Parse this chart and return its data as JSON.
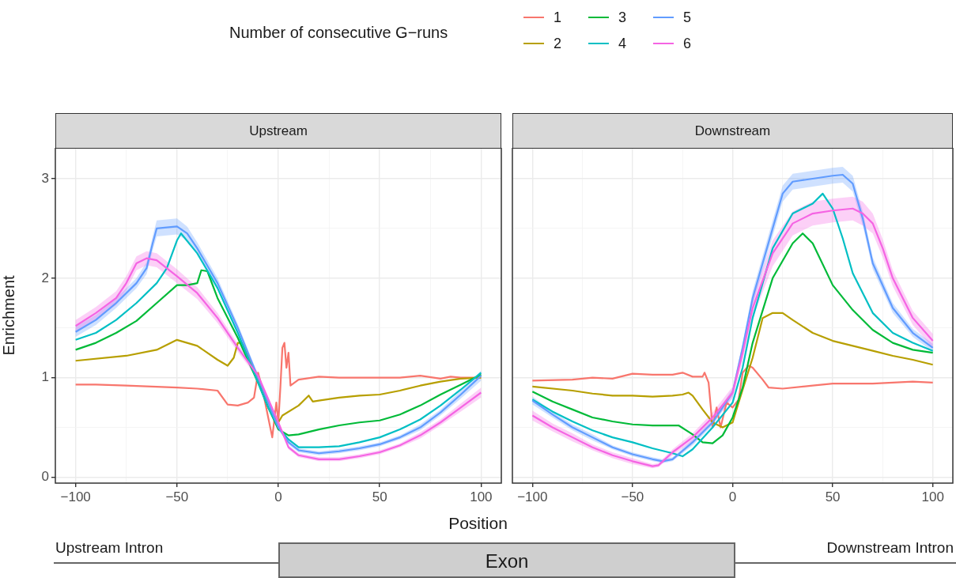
{
  "chart_data": [
    {
      "type": "line",
      "title": "Upstream",
      "xlabel": "Position",
      "ylabel": "Enrichment",
      "legend_title": "Number of consecutive G−runs",
      "legend": "top",
      "grid": true,
      "annotations": [
        "Upstream Intron",
        "Exon",
        "Downstream Intron"
      ],
      "xlim": [
        -110,
        110
      ],
      "ylim": [
        -0.06,
        3.31
      ],
      "xticks": [
        {
          "value": -100,
          "label": "−100"
        },
        {
          "value": -75,
          "label": null
        },
        {
          "value": -50,
          "label": "−50"
        },
        {
          "value": -25,
          "label": null
        },
        0,
        {
          "value": 25,
          "label": null
        },
        50,
        {
          "value": 75,
          "label": null
        },
        100
      ],
      "yticks": [
        0,
        {
          "value": 0.5,
          "label": null
        },
        1,
        {
          "value": 1.5,
          "label": null
        },
        2,
        {
          "value": 2.5,
          "label": null
        },
        3
      ],
      "series": [
        {
          "name": "1",
          "color": "#f8766d",
          "x": [
            -100,
            -90,
            -75,
            -50,
            -40,
            -30,
            -25,
            -20,
            -15,
            -12,
            -10,
            -8,
            -5,
            -3,
            -1,
            0,
            1,
            2,
            3,
            4,
            5,
            6,
            10,
            20,
            30,
            40,
            50,
            60,
            70,
            80,
            85,
            90,
            100
          ],
          "values": [
            0.93,
            0.93,
            0.92,
            0.9,
            0.89,
            0.87,
            0.73,
            0.72,
            0.75,
            0.8,
            1.05,
            0.9,
            0.6,
            0.4,
            0.75,
            0.55,
            0.9,
            1.3,
            1.35,
            1.1,
            1.25,
            0.92,
            0.98,
            1.01,
            1.0,
            1.0,
            1.0,
            1.0,
            1.02,
            0.99,
            1.01,
            1.0,
            1.0
          ]
        },
        {
          "name": "2",
          "color": "#b79f00",
          "x": [
            -100,
            -75,
            -60,
            -50,
            -40,
            -30,
            -25,
            -22,
            -20,
            -18,
            -10,
            -5,
            0,
            2,
            10,
            15,
            17,
            20,
            30,
            40,
            50,
            60,
            70,
            80,
            90,
            100
          ],
          "values": [
            1.17,
            1.22,
            1.28,
            1.38,
            1.32,
            1.18,
            1.12,
            1.2,
            1.35,
            1.35,
            1.0,
            0.7,
            0.55,
            0.62,
            0.72,
            0.82,
            0.76,
            0.77,
            0.8,
            0.82,
            0.83,
            0.87,
            0.92,
            0.96,
            0.99,
            1.0
          ]
        },
        {
          "name": "3",
          "color": "#00ba38",
          "x": [
            -100,
            -90,
            -80,
            -70,
            -60,
            -50,
            -45,
            -40,
            -38,
            -35,
            -30,
            -20,
            -10,
            -5,
            0,
            5,
            10,
            20,
            30,
            40,
            50,
            60,
            70,
            80,
            90,
            100
          ],
          "values": [
            1.28,
            1.35,
            1.45,
            1.57,
            1.75,
            1.93,
            1.93,
            1.95,
            2.08,
            2.07,
            1.8,
            1.4,
            0.95,
            0.7,
            0.48,
            0.42,
            0.43,
            0.48,
            0.52,
            0.55,
            0.57,
            0.63,
            0.72,
            0.83,
            0.93,
            1.03
          ]
        },
        {
          "name": "4",
          "color": "#00bfc4",
          "x": [
            -100,
            -90,
            -80,
            -70,
            -60,
            -55,
            -50,
            -48,
            -40,
            -30,
            -20,
            -10,
            -5,
            0,
            5,
            10,
            20,
            30,
            40,
            50,
            60,
            70,
            80,
            90,
            100
          ],
          "values": [
            1.38,
            1.45,
            1.58,
            1.75,
            1.95,
            2.1,
            2.38,
            2.45,
            2.25,
            1.9,
            1.45,
            0.95,
            0.7,
            0.5,
            0.38,
            0.3,
            0.3,
            0.31,
            0.35,
            0.4,
            0.48,
            0.58,
            0.72,
            0.88,
            1.05
          ]
        },
        {
          "name": "5",
          "color": "#619cff",
          "x": [
            -100,
            -90,
            -80,
            -70,
            -65,
            -62,
            -60,
            -50,
            -45,
            -40,
            -30,
            -20,
            -10,
            -5,
            0,
            5,
            10,
            20,
            30,
            40,
            50,
            60,
            70,
            80,
            90,
            100
          ],
          "values": [
            1.46,
            1.58,
            1.75,
            1.95,
            2.1,
            2.35,
            2.5,
            2.52,
            2.45,
            2.3,
            1.95,
            1.5,
            1.0,
            0.75,
            0.5,
            0.35,
            0.27,
            0.24,
            0.26,
            0.29,
            0.33,
            0.4,
            0.5,
            0.65,
            0.83,
            1.02
          ],
          "lower": [
            1.41,
            1.53,
            1.7,
            1.9,
            2.04,
            2.28,
            2.42,
            2.44,
            2.38,
            2.24,
            1.9,
            1.46,
            0.97,
            0.72,
            0.48,
            0.33,
            0.25,
            0.22,
            0.24,
            0.27,
            0.31,
            0.38,
            0.47,
            0.62,
            0.79,
            0.97
          ],
          "upper": [
            1.51,
            1.63,
            1.8,
            2.0,
            2.16,
            2.42,
            2.58,
            2.6,
            2.52,
            2.36,
            2.0,
            1.54,
            1.03,
            0.78,
            0.52,
            0.37,
            0.29,
            0.26,
            0.28,
            0.31,
            0.35,
            0.42,
            0.53,
            0.68,
            0.87,
            1.07
          ]
        },
        {
          "name": "6",
          "color": "#f564e3",
          "x": [
            -100,
            -90,
            -80,
            -75,
            -70,
            -65,
            -60,
            -50,
            -40,
            -30,
            -20,
            -10,
            0,
            5,
            10,
            20,
            30,
            40,
            50,
            60,
            70,
            80,
            90,
            100
          ],
          "values": [
            1.52,
            1.65,
            1.8,
            1.95,
            2.15,
            2.2,
            2.18,
            2.02,
            1.85,
            1.6,
            1.3,
            1.02,
            0.55,
            0.3,
            0.22,
            0.18,
            0.18,
            0.21,
            0.25,
            0.32,
            0.42,
            0.55,
            0.7,
            0.85
          ],
          "lower": [
            1.46,
            1.59,
            1.73,
            1.88,
            2.08,
            2.13,
            2.11,
            1.95,
            1.79,
            1.55,
            1.26,
            0.99,
            0.53,
            0.28,
            0.2,
            0.16,
            0.16,
            0.19,
            0.23,
            0.3,
            0.39,
            0.52,
            0.66,
            0.8
          ],
          "upper": [
            1.58,
            1.71,
            1.87,
            2.02,
            2.22,
            2.27,
            2.25,
            2.09,
            1.91,
            1.65,
            1.34,
            1.05,
            0.57,
            0.32,
            0.24,
            0.2,
            0.2,
            0.23,
            0.27,
            0.34,
            0.45,
            0.58,
            0.74,
            0.9
          ]
        }
      ]
    },
    {
      "type": "line",
      "title": "Downstream",
      "grid": true,
      "tick_labels": "x",
      "xlim": [
        -110,
        110
      ],
      "ylim": [
        -0.06,
        3.31
      ],
      "xticks": [
        {
          "value": -100,
          "label": "−100"
        },
        {
          "value": -75,
          "label": null
        },
        {
          "value": -50,
          "label": "−50"
        },
        {
          "value": -25,
          "label": null
        },
        0,
        {
          "value": 25,
          "label": null
        },
        50,
        {
          "value": 75,
          "label": null
        },
        100
      ],
      "yticks": [
        0,
        {
          "value": 0.5,
          "label": null
        },
        1,
        {
          "value": 1.5,
          "label": null
        },
        2,
        {
          "value": 2.5,
          "label": null
        },
        3
      ],
      "series": [
        {
          "name": "1",
          "color": "#f8766d",
          "x": [
            -100,
            -80,
            -70,
            -60,
            -50,
            -40,
            -30,
            -25,
            -20,
            -15,
            -14,
            -12,
            -10,
            -8,
            -6,
            -3,
            0,
            3,
            5,
            8,
            10,
            15,
            18,
            25,
            40,
            50,
            60,
            70,
            80,
            90,
            100
          ],
          "values": [
            0.97,
            0.98,
            1.0,
            0.99,
            1.04,
            1.03,
            1.03,
            1.05,
            1.01,
            1.01,
            1.05,
            0.95,
            0.5,
            0.7,
            0.5,
            0.75,
            0.7,
            0.78,
            1.05,
            1.12,
            1.1,
            0.98,
            0.9,
            0.89,
            0.92,
            0.94,
            0.94,
            0.94,
            0.95,
            0.96,
            0.95
          ]
        },
        {
          "name": "2",
          "color": "#b79f00",
          "x": [
            -100,
            -80,
            -70,
            -60,
            -50,
            -40,
            -30,
            -25,
            -22,
            -20,
            -15,
            -10,
            -5,
            0,
            3,
            10,
            15,
            20,
            25,
            30,
            40,
            50,
            60,
            70,
            80,
            90,
            100
          ],
          "values": [
            0.91,
            0.87,
            0.84,
            0.82,
            0.82,
            0.81,
            0.82,
            0.83,
            0.85,
            0.82,
            0.68,
            0.55,
            0.5,
            0.55,
            0.75,
            1.2,
            1.6,
            1.65,
            1.65,
            1.58,
            1.45,
            1.37,
            1.32,
            1.27,
            1.22,
            1.18,
            1.13
          ]
        },
        {
          "name": "3",
          "color": "#00ba38",
          "x": [
            -100,
            -90,
            -80,
            -70,
            -60,
            -50,
            -40,
            -30,
            -27,
            -20,
            -15,
            -10,
            -5,
            0,
            5,
            10,
            20,
            30,
            35,
            40,
            50,
            60,
            70,
            80,
            90,
            100
          ],
          "values": [
            0.86,
            0.76,
            0.68,
            0.6,
            0.56,
            0.53,
            0.52,
            0.52,
            0.52,
            0.43,
            0.35,
            0.34,
            0.42,
            0.6,
            0.9,
            1.35,
            2.0,
            2.35,
            2.45,
            2.35,
            1.93,
            1.68,
            1.48,
            1.35,
            1.28,
            1.25
          ]
        },
        {
          "name": "4",
          "color": "#00bfc4",
          "x": [
            -100,
            -90,
            -80,
            -70,
            -60,
            -50,
            -40,
            -30,
            -25,
            -20,
            -10,
            0,
            5,
            10,
            20,
            30,
            40,
            45,
            50,
            55,
            60,
            70,
            80,
            90,
            100
          ],
          "values": [
            0.78,
            0.66,
            0.56,
            0.47,
            0.4,
            0.35,
            0.29,
            0.24,
            0.21,
            0.28,
            0.5,
            0.75,
            1.1,
            1.6,
            2.3,
            2.65,
            2.75,
            2.85,
            2.7,
            2.4,
            2.05,
            1.65,
            1.45,
            1.35,
            1.27
          ]
        },
        {
          "name": "5",
          "color": "#619cff",
          "x": [
            -100,
            -90,
            -80,
            -70,
            -60,
            -50,
            -40,
            -35,
            -30,
            -20,
            -10,
            0,
            5,
            10,
            20,
            25,
            30,
            40,
            50,
            55,
            60,
            65,
            70,
            80,
            90,
            100
          ],
          "values": [
            0.77,
            0.63,
            0.5,
            0.4,
            0.3,
            0.23,
            0.18,
            0.16,
            0.18,
            0.35,
            0.55,
            0.85,
            1.3,
            1.8,
            2.5,
            2.85,
            2.97,
            3.0,
            3.03,
            3.04,
            2.95,
            2.6,
            2.15,
            1.7,
            1.45,
            1.3
          ],
          "lower": [
            0.73,
            0.6,
            0.47,
            0.37,
            0.28,
            0.21,
            0.16,
            0.14,
            0.16,
            0.32,
            0.52,
            0.81,
            1.25,
            1.73,
            2.42,
            2.77,
            2.89,
            2.92,
            2.95,
            2.96,
            2.87,
            2.53,
            2.09,
            1.65,
            1.41,
            1.26
          ],
          "upper": [
            0.81,
            0.66,
            0.53,
            0.43,
            0.32,
            0.25,
            0.2,
            0.18,
            0.2,
            0.38,
            0.58,
            0.89,
            1.35,
            1.87,
            2.58,
            2.93,
            3.05,
            3.08,
            3.11,
            3.12,
            3.03,
            2.67,
            2.21,
            1.75,
            1.49,
            1.34
          ]
        },
        {
          "name": "6",
          "color": "#f564e3",
          "x": [
            -100,
            -90,
            -80,
            -70,
            -60,
            -50,
            -40,
            -37,
            -30,
            -20,
            -10,
            0,
            5,
            10,
            20,
            30,
            40,
            50,
            60,
            65,
            70,
            75,
            80,
            90,
            100
          ],
          "values": [
            0.62,
            0.5,
            0.4,
            0.3,
            0.22,
            0.16,
            0.11,
            0.12,
            0.25,
            0.4,
            0.6,
            0.85,
            1.25,
            1.7,
            2.25,
            2.55,
            2.65,
            2.68,
            2.7,
            2.65,
            2.55,
            2.3,
            2.0,
            1.6,
            1.37
          ],
          "lower": [
            0.57,
            0.46,
            0.36,
            0.27,
            0.19,
            0.13,
            0.09,
            0.1,
            0.22,
            0.36,
            0.55,
            0.79,
            1.17,
            1.6,
            2.12,
            2.43,
            2.53,
            2.56,
            2.58,
            2.53,
            2.45,
            2.21,
            1.92,
            1.53,
            1.3
          ],
          "upper": [
            0.67,
            0.54,
            0.44,
            0.33,
            0.25,
            0.19,
            0.13,
            0.14,
            0.28,
            0.44,
            0.65,
            0.91,
            1.33,
            1.8,
            2.38,
            2.67,
            2.77,
            2.8,
            2.82,
            2.77,
            2.65,
            2.39,
            2.08,
            1.67,
            1.44
          ]
        }
      ]
    }
  ]
}
